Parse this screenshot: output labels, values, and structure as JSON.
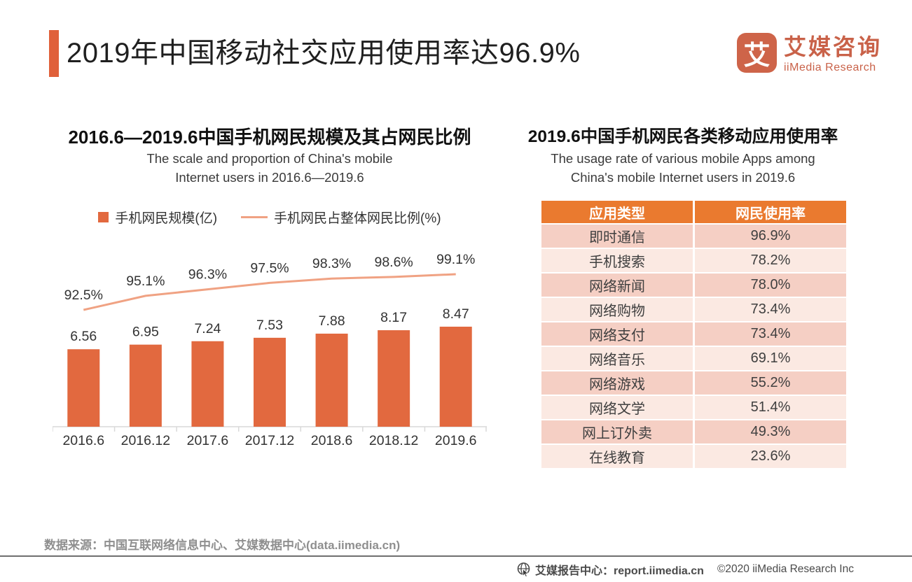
{
  "header": {
    "title": "2019年中国移动社交应用使用率达96.9%",
    "logo": {
      "glyph": "艾",
      "name_cn": "艾媒咨询",
      "name_en": "iiMedia Research"
    }
  },
  "left_chart": {
    "title": "2016.6—2019.6中国手机网民规模及其占网民比例",
    "subtitle_line1": "The scale and proportion of China's mobile",
    "subtitle_line2": "Internet users in 2016.6—2019.6",
    "legend": [
      {
        "label": "手机网民规模(亿)"
      },
      {
        "label": "手机网民占整体网民比例(%)"
      }
    ]
  },
  "chart_data": [
    {
      "type": "bar",
      "title": "2016.6—2019.6中国手机网民规模及其占网民比例",
      "categories": [
        "2016.6",
        "2016.12",
        "2017.6",
        "2017.12",
        "2018.6",
        "2018.12",
        "2019.6"
      ],
      "series": [
        {
          "name": "手机网民规模(亿)",
          "type": "bar",
          "values": [
            6.56,
            6.95,
            7.24,
            7.53,
            7.88,
            8.17,
            8.47
          ]
        },
        {
          "name": "手机网民占整体网民比例(%)",
          "type": "line",
          "values": [
            92.5,
            95.1,
            96.3,
            97.5,
            98.3,
            98.6,
            99.1
          ],
          "labels": [
            "92.5%",
            "95.1%",
            "96.3%",
            "97.5%",
            "98.3%",
            "98.6%",
            "99.1%"
          ]
        }
      ],
      "xlabel": "",
      "ylabel": "",
      "grid": false,
      "legend_position": "top",
      "bar_ylim": [
        0,
        9.5
      ],
      "line_ylim": [
        92.5,
        99.1
      ]
    },
    {
      "type": "table",
      "title": "2019.6中国手机网民各类移动应用使用率",
      "columns": [
        "应用类型",
        "网民使用率"
      ],
      "rows": [
        [
          "即时通信",
          "96.9%"
        ],
        [
          "手机搜索",
          "78.2%"
        ],
        [
          "网络新闻",
          "78.0%"
        ],
        [
          "网络购物",
          "73.4%"
        ],
        [
          "网络支付",
          "73.4%"
        ],
        [
          "网络音乐",
          "69.1%"
        ],
        [
          "网络游戏",
          "55.2%"
        ],
        [
          "网络文学",
          "51.4%"
        ],
        [
          "网上订外卖",
          "49.3%"
        ],
        [
          "在线教育",
          "23.6%"
        ]
      ]
    }
  ],
  "right_table": {
    "title": "2019.6中国手机网民各类移动应用使用率",
    "subtitle_line1": "The usage rate of various mobile Apps among",
    "subtitle_line2": "China's mobile Internet users in 2019.6",
    "columns": [
      "应用类型",
      "网民使用率"
    ]
  },
  "footer": {
    "source": "数据来源：中国互联网络信息中心、艾媒数据中心(data.iimedia.cn)",
    "report_center": "艾媒报告中心：report.iimedia.cn",
    "copyright": "©2020  iiMedia Research  Inc"
  },
  "colors": {
    "accent": "#E0603A",
    "bar": "#E2693F",
    "line": "#F0A283",
    "table_header_bg": "#EA7A2F",
    "table_row_dark": "#F5CFC4",
    "table_row_light": "#FBE9E2",
    "logo_orange": "#CE6449",
    "axis_gray": "#d9d9d9",
    "label_gray": "#333333"
  }
}
